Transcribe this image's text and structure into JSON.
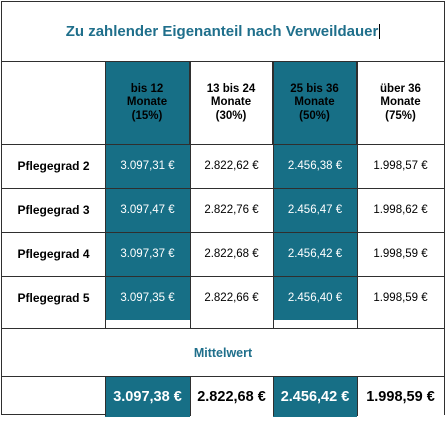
{
  "title": "Zu zahlender Eigenanteil nach Verweildauer",
  "columns": [
    {
      "line1": "bis 12",
      "line2": "Monate",
      "line3": "(15%)"
    },
    {
      "line1": "13 bis 24",
      "line2": "Monate",
      "line3": "(30%)"
    },
    {
      "line1": "25 bis 36",
      "line2": "Monate",
      "line3": "(50%)"
    },
    {
      "line1": "über 36",
      "line2": "Monate",
      "line3": "(75%)"
    }
  ],
  "rows": [
    {
      "label": "Pflegegrad 2",
      "values": [
        "3.097,31 €",
        "2.822,62 €",
        "2.456,38 €",
        "1.998,57 €"
      ]
    },
    {
      "label": "Pflegegrad 3",
      "values": [
        "3.097,47 €",
        "2.822,76 €",
        "2.456,47 €",
        "1.998,62 €"
      ]
    },
    {
      "label": "Pflegegrad 4",
      "values": [
        "3.097,37 €",
        "2.822,68 €",
        "2.456,42 €",
        "1.998,59 €"
      ]
    },
    {
      "label": "Pflegegrad 5",
      "values": [
        "3.097,35 €",
        "2.822,66 €",
        "2.456,40 €",
        "1.998,59 €"
      ]
    }
  ],
  "mittelwert_label": "Mittelwert",
  "mittelwert_values": [
    "3.097,38 €",
    "2.822,68 €",
    "2.456,42 €",
    "1.998,59 €"
  ],
  "colors": {
    "accent_teal": "#176f86",
    "title_teal": "#1f6f8b"
  }
}
